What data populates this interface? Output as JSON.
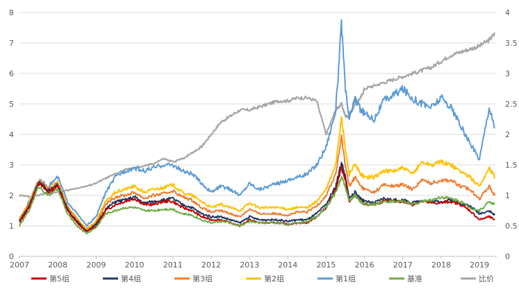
{
  "chart_data": {
    "type": "line",
    "title": "",
    "xlabel": "",
    "ylabel": "",
    "grid": true,
    "legend_position": "bottom",
    "x_ticks": [
      "2007",
      "2008",
      "2009",
      "2010",
      "2011",
      "2012",
      "2013",
      "2014",
      "2015",
      "2016",
      "2017",
      "2018",
      "2019"
    ],
    "y_left": {
      "min": 0,
      "max": 8,
      "ticks": [
        "0",
        "1",
        "2",
        "3",
        "4",
        "5",
        "6",
        "7",
        "8"
      ]
    },
    "y_right": {
      "min": 0,
      "max": 4,
      "ticks": [
        "0",
        "0.5",
        "1",
        "1.5",
        "2",
        "2.5",
        "3",
        "3.5",
        "4"
      ]
    },
    "x": [
      2007.0,
      2007.25,
      2007.5,
      2007.75,
      2008.0,
      2008.25,
      2008.5,
      2008.75,
      2009.0,
      2009.25,
      2009.5,
      2009.75,
      2010.0,
      2010.25,
      2010.5,
      2010.75,
      2011.0,
      2011.25,
      2011.5,
      2011.75,
      2012.0,
      2012.25,
      2012.5,
      2012.75,
      2013.0,
      2013.25,
      2013.5,
      2013.75,
      2014.0,
      2014.25,
      2014.5,
      2014.75,
      2015.0,
      2015.25,
      2015.4,
      2015.5,
      2015.6,
      2015.75,
      2015.9,
      2016.0,
      2016.25,
      2016.5,
      2016.75,
      2017.0,
      2017.25,
      2017.5,
      2017.75,
      2018.0,
      2018.25,
      2018.5,
      2018.75,
      2019.0,
      2019.25,
      2019.4
    ],
    "series": [
      {
        "name": "第5组",
        "color": "#c00000",
        "axis": "left",
        "values": [
          1.1,
          1.6,
          2.4,
          2.1,
          2.3,
          1.5,
          1.1,
          0.8,
          1.0,
          1.5,
          1.7,
          1.8,
          1.9,
          1.7,
          1.7,
          1.8,
          1.8,
          1.6,
          1.5,
          1.3,
          1.2,
          1.2,
          1.1,
          1.0,
          1.2,
          1.1,
          1.1,
          1.1,
          1.05,
          1.1,
          1.1,
          1.3,
          1.6,
          2.2,
          2.9,
          2.5,
          1.8,
          2.0,
          1.8,
          1.7,
          1.7,
          1.8,
          1.8,
          1.8,
          1.7,
          1.8,
          1.75,
          1.75,
          1.8,
          1.7,
          1.5,
          1.2,
          1.3,
          1.2
        ]
      },
      {
        "name": "第4组",
        "color": "#203864",
        "axis": "left",
        "values": [
          1.15,
          1.65,
          2.45,
          2.15,
          2.35,
          1.55,
          1.15,
          0.82,
          1.05,
          1.55,
          1.8,
          1.85,
          1.95,
          1.75,
          1.8,
          1.85,
          1.9,
          1.7,
          1.6,
          1.4,
          1.3,
          1.3,
          1.2,
          1.1,
          1.3,
          1.2,
          1.2,
          1.2,
          1.15,
          1.2,
          1.2,
          1.4,
          1.7,
          2.3,
          3.1,
          2.6,
          1.9,
          2.1,
          1.9,
          1.8,
          1.75,
          1.9,
          1.85,
          1.85,
          1.75,
          1.85,
          1.8,
          1.8,
          1.85,
          1.75,
          1.65,
          1.4,
          1.5,
          1.35
        ]
      },
      {
        "name": "第3组",
        "color": "#ed7d31",
        "axis": "left",
        "values": [
          1.2,
          1.7,
          2.5,
          2.2,
          2.4,
          1.6,
          1.2,
          0.85,
          1.1,
          1.7,
          1.95,
          2.0,
          2.1,
          1.9,
          2.0,
          2.05,
          2.15,
          1.95,
          1.85,
          1.6,
          1.45,
          1.5,
          1.4,
          1.3,
          1.55,
          1.4,
          1.4,
          1.4,
          1.35,
          1.45,
          1.45,
          1.65,
          2.0,
          2.7,
          3.9,
          3.0,
          2.3,
          2.6,
          2.3,
          2.2,
          2.1,
          2.35,
          2.3,
          2.35,
          2.2,
          2.5,
          2.4,
          2.5,
          2.5,
          2.3,
          2.2,
          1.9,
          2.3,
          2.0
        ]
      },
      {
        "name": "第2组",
        "color": "#ffc000",
        "axis": "left",
        "values": [
          1.25,
          1.75,
          2.5,
          2.2,
          2.45,
          1.65,
          1.25,
          0.9,
          1.15,
          1.8,
          2.1,
          2.2,
          2.3,
          2.1,
          2.2,
          2.25,
          2.35,
          2.1,
          2.0,
          1.8,
          1.6,
          1.7,
          1.6,
          1.5,
          1.75,
          1.6,
          1.6,
          1.6,
          1.55,
          1.6,
          1.6,
          1.8,
          2.2,
          3.0,
          4.6,
          3.5,
          2.7,
          3.0,
          2.7,
          2.6,
          2.6,
          2.8,
          2.8,
          2.9,
          2.7,
          3.1,
          3.0,
          3.1,
          3.0,
          2.8,
          2.6,
          2.3,
          2.9,
          2.6
        ]
      },
      {
        "name": "第1组",
        "color": "#5b9bd5",
        "axis": "left",
        "values": [
          1.2,
          1.8,
          2.5,
          2.3,
          2.6,
          1.8,
          1.4,
          1.0,
          1.3,
          2.1,
          2.6,
          2.8,
          2.9,
          2.8,
          2.9,
          3.0,
          3.0,
          2.8,
          2.7,
          2.4,
          2.1,
          2.3,
          2.2,
          2.0,
          2.4,
          2.2,
          2.3,
          2.4,
          2.5,
          2.6,
          2.7,
          3.0,
          3.6,
          4.8,
          7.6,
          5.5,
          4.5,
          5.2,
          4.8,
          4.7,
          4.5,
          5.1,
          5.3,
          5.5,
          5.2,
          5.0,
          4.9,
          5.2,
          4.9,
          4.3,
          3.7,
          3.2,
          4.9,
          4.2
        ]
      },
      {
        "name": "基准",
        "color": "#70ad47",
        "axis": "left",
        "values": [
          1.0,
          1.5,
          2.3,
          2.0,
          2.2,
          1.4,
          1.0,
          0.75,
          0.95,
          1.4,
          1.5,
          1.6,
          1.6,
          1.5,
          1.5,
          1.55,
          1.55,
          1.4,
          1.35,
          1.2,
          1.1,
          1.15,
          1.1,
          1.0,
          1.15,
          1.1,
          1.1,
          1.1,
          1.05,
          1.1,
          1.15,
          1.3,
          1.6,
          2.1,
          2.6,
          2.3,
          1.8,
          2.0,
          1.8,
          1.7,
          1.7,
          1.8,
          1.8,
          1.8,
          1.7,
          1.8,
          1.85,
          1.95,
          1.9,
          1.8,
          1.6,
          1.5,
          1.8,
          1.7
        ]
      },
      {
        "name": "比价",
        "color": "#a6a6a6",
        "axis": "right",
        "values": [
          1.0,
          0.98,
          1.0,
          1.05,
          1.05,
          1.08,
          1.12,
          1.15,
          1.2,
          1.28,
          1.35,
          1.42,
          1.45,
          1.48,
          1.52,
          1.6,
          1.55,
          1.6,
          1.7,
          1.8,
          2.0,
          2.2,
          2.3,
          2.4,
          2.4,
          2.45,
          2.5,
          2.55,
          2.55,
          2.6,
          2.6,
          2.55,
          2.0,
          2.4,
          2.5,
          2.3,
          2.3,
          2.5,
          2.6,
          2.75,
          2.8,
          2.85,
          2.9,
          2.95,
          3.0,
          3.05,
          3.1,
          3.2,
          3.3,
          3.35,
          3.4,
          3.45,
          3.55,
          3.65
        ]
      }
    ]
  }
}
